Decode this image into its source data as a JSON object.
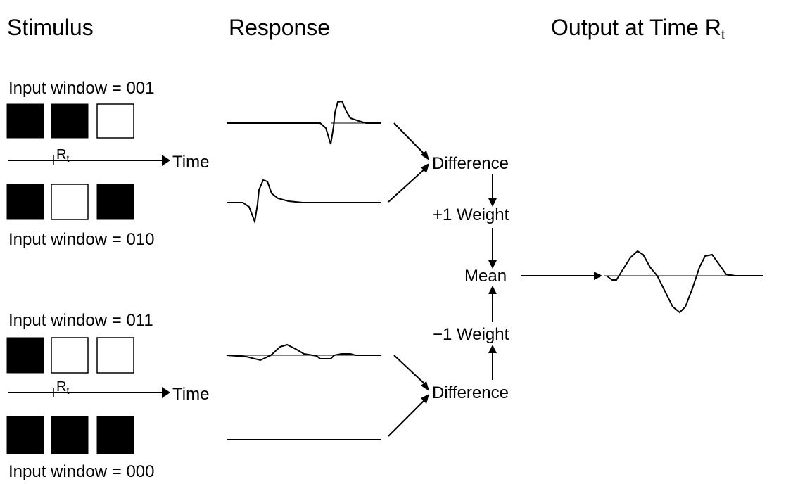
{
  "headers": {
    "stimulus": "Stimulus",
    "response": "Response",
    "output": {
      "text": "Output at Time R",
      "subscript": "t"
    }
  },
  "groups": [
    {
      "top_label": "Input window = 001",
      "time_label": "Time",
      "marker": {
        "text": "R",
        "subscript": "t"
      },
      "bottom_label": "Input window = 010",
      "difference": "Difference"
    },
    {
      "top_label": "Input window = 011",
      "time_label": "Time",
      "marker": {
        "text": "R",
        "subscript": "t"
      },
      "bottom_label": "Input window = 000",
      "difference": "Difference"
    }
  ],
  "weights": {
    "positive": "+1 Weight",
    "negative": "−1 Weight"
  },
  "mean": "Mean"
}
